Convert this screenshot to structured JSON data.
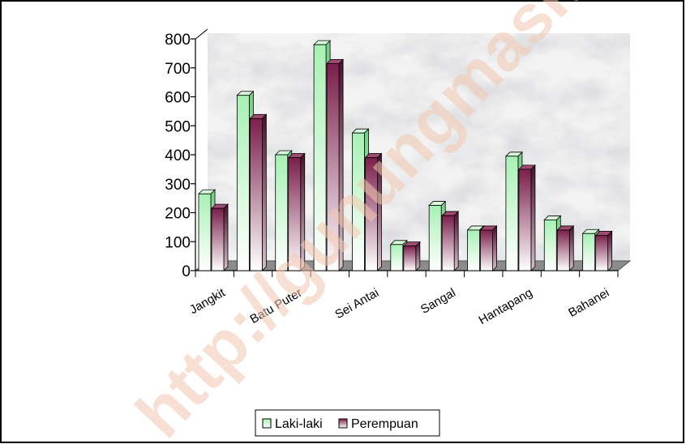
{
  "chart_data": {
    "type": "bar",
    "title": "",
    "xlabel": "",
    "ylabel": "",
    "ylim": [
      0,
      800
    ],
    "yticks": [
      0,
      100,
      200,
      300,
      400,
      500,
      600,
      700,
      800
    ],
    "categories": [
      "Jangkit",
      "",
      "Batu Puter",
      "",
      "Sei Antai",
      "",
      "Sangal",
      "",
      "Hantapang",
      "",
      "Bahanei"
    ],
    "x_tick_labels": [
      "Jangkit",
      "Batu Puter",
      "Sei Antai",
      "Sangal",
      "Hantapang",
      "Bahanei"
    ],
    "series": [
      {
        "name": "Laki-laki",
        "color": "#b8f5c0",
        "values": [
          265,
          605,
          400,
          780,
          475,
          90,
          225,
          140,
          395,
          175,
          128
        ]
      },
      {
        "name": "Perempuan",
        "color": "#7a1e4a",
        "values": [
          215,
          525,
          390,
          715,
          390,
          85,
          190,
          140,
          350,
          140,
          122
        ]
      }
    ],
    "grid": false,
    "legend_position": "bottom",
    "watermark": "http://gunungmaskab.bps.go.id"
  }
}
